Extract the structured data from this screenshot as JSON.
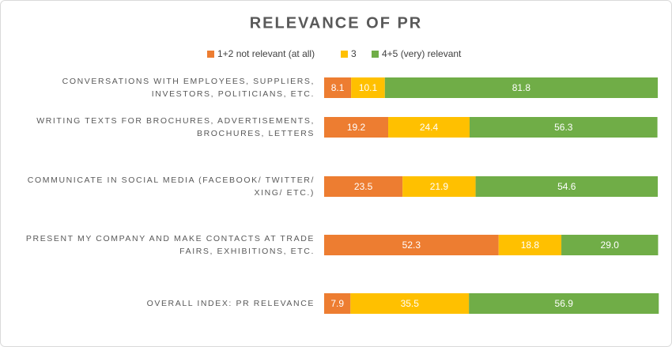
{
  "chart_data": {
    "type": "stacked_barh",
    "title": "RELEVANCE OF PR",
    "categories": [
      "CONVERSATIONS WITH EMPLOYEES, SUPPLIERS, INVESTORS, POLITICIANS, ETC.",
      "WRITING TEXTS FOR BROCHURES, ADVERTISEMENTS, BROCHURES, LETTERS",
      "COMMUNICATE IN SOCIAL MEDIA (FACEBOOK/ TWITTER/ XING/ ETC.)",
      "PRESENT MY COMPANY AND MAKE CONTACTS AT TRADE FAIRS, EXHIBITIONS, ETC.",
      "OVERALL INDEX: PR RELEVANCE"
    ],
    "series": [
      {
        "name": "1+2 not relevant (at all)",
        "color": "#ed7d31",
        "values": [
          8.1,
          19.2,
          23.5,
          52.3,
          7.9
        ],
        "value_labels": [
          "8.1",
          "19.2",
          "23.5",
          "52.3",
          "7.9"
        ]
      },
      {
        "name": "3",
        "color": "#ffc000",
        "values": [
          10.1,
          24.4,
          21.9,
          18.8,
          35.5
        ],
        "value_labels": [
          "10.1",
          "24.4",
          "21.9",
          "18.8",
          "35.5"
        ]
      },
      {
        "name": "4+5 (very) relevant",
        "color": "#70ad47",
        "values": [
          81.8,
          56.3,
          54.6,
          29.0,
          56.9
        ],
        "value_labels": [
          "81.8",
          "56.3",
          "54.6",
          "29.0",
          "56.9"
        ]
      }
    ],
    "xlim": [
      0,
      100
    ],
    "legend": "top"
  }
}
